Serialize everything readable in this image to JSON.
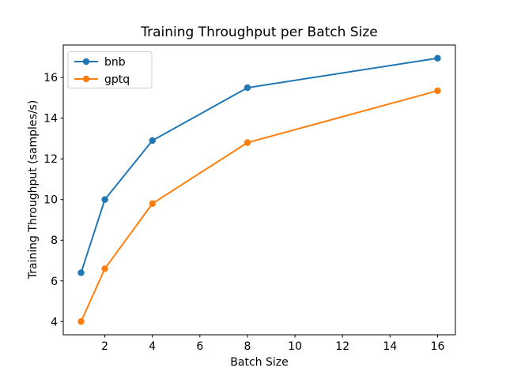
{
  "chart_data": {
    "type": "line",
    "title": "Training Throughput per Batch Size",
    "xlabel": "Batch Size",
    "ylabel": "Training Throughput (samples/s)",
    "x": [
      1,
      2,
      4,
      8,
      16
    ],
    "series": [
      {
        "name": "bnb",
        "color": "#1f77b4",
        "values": [
          6.4,
          10.0,
          12.9,
          15.5,
          16.95
        ]
      },
      {
        "name": "gptq",
        "color": "#ff7f0e",
        "values": [
          4.0,
          6.6,
          9.8,
          12.8,
          15.35
        ]
      }
    ],
    "xticks": [
      2,
      4,
      6,
      8,
      10,
      12,
      14,
      16
    ],
    "yticks": [
      4,
      6,
      8,
      10,
      12,
      14,
      16
    ],
    "xlim": [
      0.25,
      16.75
    ],
    "ylim": [
      3.35,
      17.6
    ],
    "legend_position": "upper left",
    "grid": false,
    "styles": {
      "spine_color": "#000000",
      "tick_color": "#000000",
      "text_color": "#000000",
      "legend_border": "#cccccc",
      "background": "#ffffff"
    }
  }
}
